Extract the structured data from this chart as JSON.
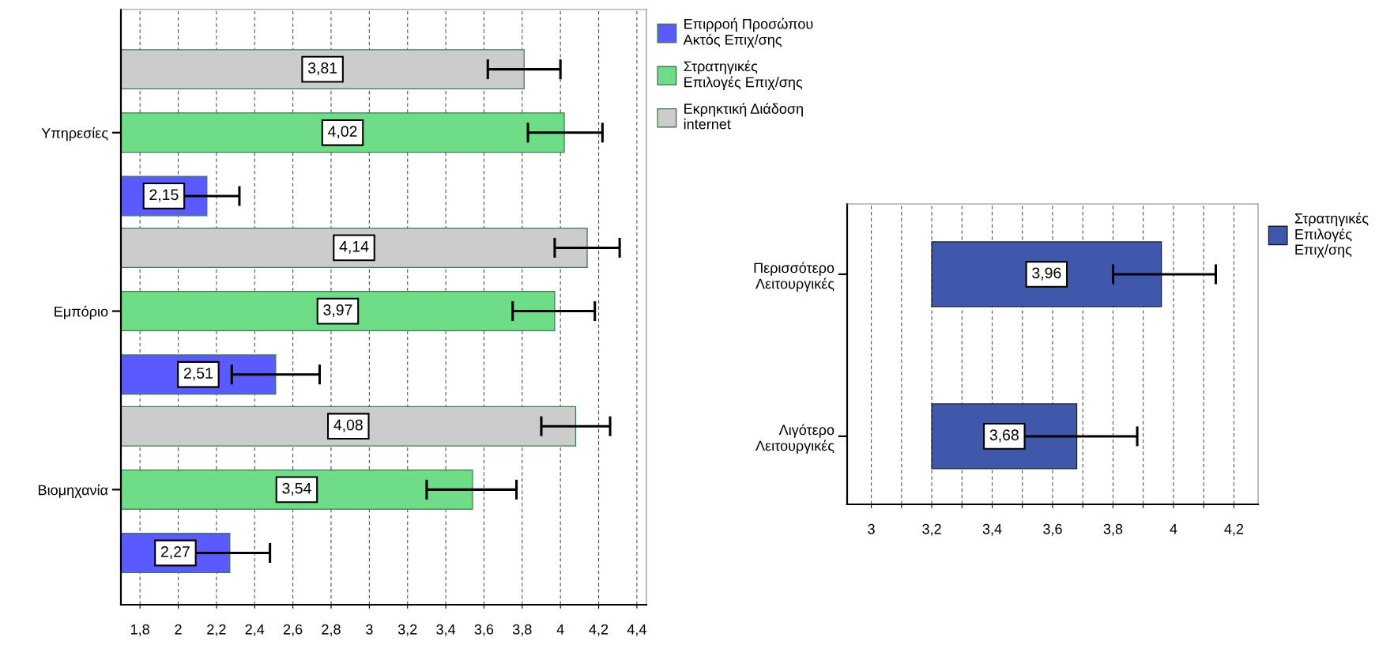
{
  "chart_data": [
    {
      "type": "bar",
      "orientation": "horizontal",
      "categories": [
        "Υπηρεσίες",
        "Εμπόριο",
        "Βιομηχανία"
      ],
      "series": [
        {
          "name": "Επιρροή Προσώπου\nΑκτός Επιχ/σης",
          "color": "#5a5aff",
          "values": [
            2.15,
            2.51,
            2.27
          ],
          "value_labels": [
            "2,15",
            "2,51",
            "2,27"
          ],
          "errors": [
            [
              1.97,
              2.32
            ],
            [
              2.28,
              2.74
            ],
            [
              2.06,
              2.48
            ]
          ]
        },
        {
          "name": "Στρατηγικές\nΕπιλογές Επιχ/σης",
          "color": "#6fdc87",
          "values": [
            4.02,
            3.97,
            3.54
          ],
          "value_labels": [
            "4,02",
            "3,97",
            "3,54"
          ],
          "errors": [
            [
              3.83,
              4.22
            ],
            [
              3.75,
              4.18
            ],
            [
              3.3,
              3.77
            ]
          ]
        },
        {
          "name": "Εκρηκτική Διάδοση\ninternet",
          "color": "#cccccc",
          "values": [
            3.81,
            4.14,
            4.08
          ],
          "value_labels": [
            "3,81",
            "4,14",
            "4,08"
          ],
          "errors": [
            [
              3.62,
              4.0
            ],
            [
              3.97,
              4.31
            ],
            [
              3.9,
              4.26
            ]
          ]
        }
      ],
      "xlim": [
        1.7,
        4.45
      ],
      "xticks": [
        {
          "value": 1.8,
          "label": "1,8"
        },
        2,
        {
          "value": 2.2,
          "label": "2,2"
        },
        {
          "value": 2.4,
          "label": "2,4"
        },
        {
          "value": 2.6,
          "label": "2,6"
        },
        {
          "value": 2.8,
          "label": "2,8"
        },
        3,
        {
          "value": 3.2,
          "label": "3,2"
        },
        {
          "value": 3.4,
          "label": "3,4"
        },
        {
          "value": 3.6,
          "label": "3,6"
        },
        {
          "value": 3.8,
          "label": "3,8"
        },
        4,
        {
          "value": 4.2,
          "label": "4,2"
        },
        {
          "value": 4.4,
          "label": "4,4"
        }
      ],
      "grid": "x",
      "legend": "top right"
    },
    {
      "type": "bar",
      "orientation": "horizontal",
      "categories": [
        "Περισσότερο\nΛειτουργικές",
        "Λιγότερο\nΛειτουργικές"
      ],
      "series": [
        {
          "name": "Στρατηγικές\nΕπιλογές\nΕπιχ/σης",
          "color": "#3f58ab",
          "values": [
            0.76,
            0.48
          ],
          "base": [
            3.2,
            3.2
          ],
          "value_labels": [
            "3,96",
            "3,68"
          ],
          "errors": [
            [
              3.8,
              4.14
            ],
            [
              3.49,
              3.88
            ]
          ]
        }
      ],
      "xlim": [
        2.92,
        4.28
      ],
      "xticks": [
        3,
        {
          "value": 3.1,
          "label": null
        },
        {
          "value": 3.2,
          "label": "3,2"
        },
        {
          "value": 3.3,
          "label": null
        },
        {
          "value": 3.4,
          "label": "3,4"
        },
        {
          "value": 3.5,
          "label": null
        },
        {
          "value": 3.6,
          "label": "3,6"
        },
        {
          "value": 3.7,
          "label": null
        },
        {
          "value": 3.8,
          "label": "3,8"
        },
        {
          "value": 3.9,
          "label": null
        },
        4,
        {
          "value": 4.1,
          "label": null
        },
        {
          "value": 4.2,
          "label": "4,2"
        }
      ],
      "grid": "x",
      "legend": "top right"
    }
  ]
}
